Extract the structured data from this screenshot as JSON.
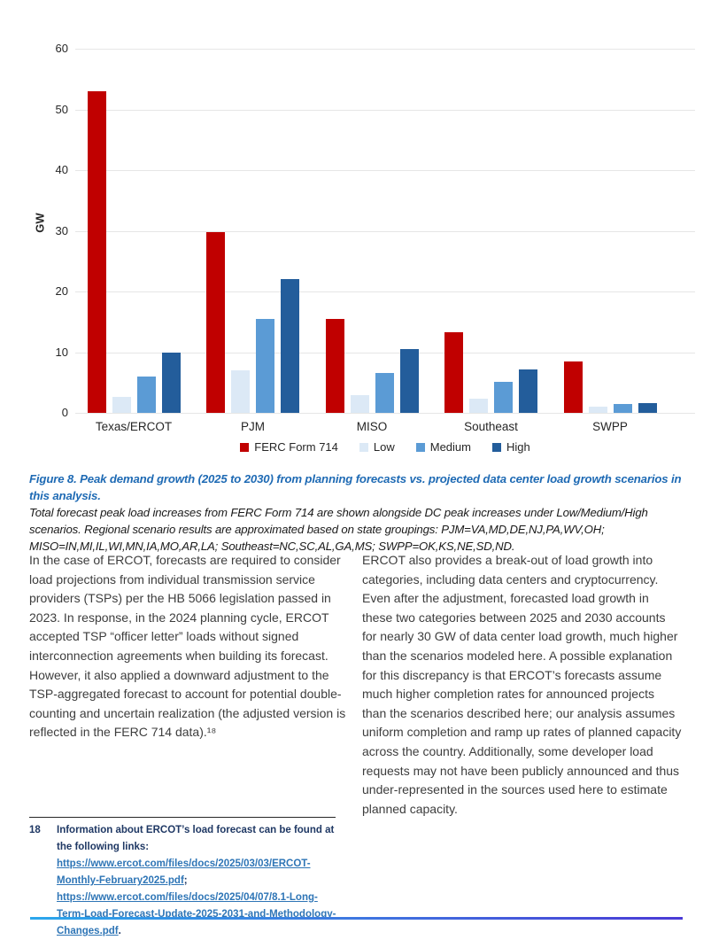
{
  "chart_data": {
    "type": "bar",
    "title": "",
    "xlabel": "",
    "ylabel": "GW",
    "ylim": [
      0,
      60
    ],
    "yticks": [
      0,
      10,
      20,
      30,
      40,
      50,
      60
    ],
    "grid": true,
    "legend_position": "bottom",
    "categories": [
      "Texas/ERCOT",
      "PJM",
      "MISO",
      "Southeast",
      "SWPP"
    ],
    "series": [
      {
        "name": "FERC Form 714",
        "color": "#c00000",
        "values": [
          53.0,
          29.8,
          15.5,
          13.3,
          8.5
        ]
      },
      {
        "name": "Low",
        "color": "#dce9f6",
        "values": [
          2.7,
          7.0,
          2.9,
          2.3,
          1.0
        ]
      },
      {
        "name": "Medium",
        "color": "#5b9bd5",
        "values": [
          6.0,
          15.5,
          6.6,
          5.1,
          1.4
        ]
      },
      {
        "name": "High",
        "color": "#235d9b",
        "values": [
          10.0,
          22.0,
          10.5,
          7.1,
          1.6
        ]
      }
    ]
  },
  "caption": {
    "heading": "Figure 8. Peak demand growth (2025 to 2030) from planning forecasts vs. projected data center load growth scenarios in this analysis.",
    "body": "Total forecast peak load increases from FERC Form 714 are shown alongside DC peak increases under Low/Medium/High scenarios. Regional scenario results are approximated based on state groupings: PJM=VA,MD,DE,NJ,PA,WV,OH; MISO=IN,MI,IL,WI,MN,IA,MO,AR,LA; Southeast=NC,SC,AL,GA,MS; SWPP=OK,KS,NE,SD,ND."
  },
  "body": {
    "left_column": "In the case of ERCOT, forecasts are required to consider load projections from individual transmission service providers (TSPs) per the HB 5066 legislation passed in 2023. In response, in the 2024 planning cycle, ERCOT accepted TSP “officer letter” loads without signed interconnection agreements when building its forecast. However, it also applied a downward adjustment to the TSP-aggregated forecast to account for potential double-counting and uncertain realization (the adjusted version is reflected in the FERC 714 data).¹⁸",
    "right_column": "ERCOT also provides a break-out of load growth into categories, including data centers and cryptocurrency. Even after the adjustment, forecasted load growth in these two categories between 2025 and 2030 accounts for nearly 30 GW of data center load growth, much higher than the scenarios modeled here. A possible explanation for this discrepancy is that ERCOT’s forecasts assume much higher completion rates for announced projects than the scenarios described here; our analysis assumes uniform completion and ramp up rates of planned capacity across the country. Additionally, some developer load requests may not have been publicly announced and thus under-represented in the sources used here to estimate planned capacity."
  },
  "footnote": {
    "number": "18",
    "text_before": "Information about ERCOT’s load forecast can be found at the following links: ",
    "link1": "https://www.ercot.com/files/docs/2025/03/03/ERCOT-Monthly-February2025.pdf",
    "separator": "; ",
    "link2": "https://www.ercot.com/files/docs/2025/04/07/8.1-Long-Term-Load-Forecast-Update-2025-2031-and-Methodology-Changes.pdf",
    "text_after": "."
  }
}
